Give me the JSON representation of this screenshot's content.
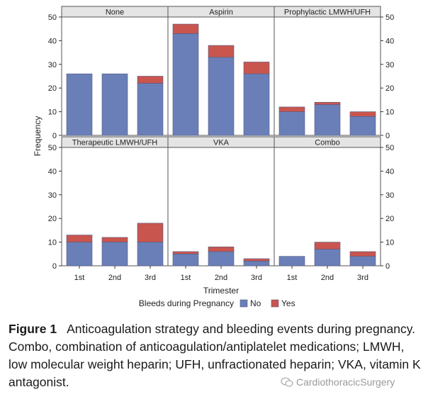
{
  "chart_data": {
    "type": "bar",
    "stacked": true,
    "layout": "paneled 2x3",
    "categories": [
      "1st",
      "2nd",
      "3rd"
    ],
    "xlabel": "Trimester",
    "ylabel": "Frequency",
    "ylim": [
      0,
      50
    ],
    "yticks": [
      0,
      10,
      20,
      30,
      40,
      50
    ],
    "legend": {
      "title": "Bleeds during Pregnancy",
      "position": "bottom",
      "entries": [
        {
          "name": "No",
          "color": "#6a7fb8"
        },
        {
          "name": "Yes",
          "color": "#c9554f"
        }
      ]
    },
    "panels": [
      {
        "title": "None",
        "series": [
          {
            "name": "No",
            "values": [
              26,
              26,
              22
            ]
          },
          {
            "name": "Yes",
            "values": [
              0,
              0,
              3
            ]
          }
        ]
      },
      {
        "title": "Aspirin",
        "series": [
          {
            "name": "No",
            "values": [
              43,
              33,
              26
            ]
          },
          {
            "name": "Yes",
            "values": [
              4,
              5,
              5
            ]
          }
        ]
      },
      {
        "title": "Prophylactic LMWH/UFH",
        "series": [
          {
            "name": "No",
            "values": [
              10,
              13,
              8
            ]
          },
          {
            "name": "Yes",
            "values": [
              2,
              1,
              2
            ]
          }
        ]
      },
      {
        "title": "Therapeutic LMWH/UFH",
        "series": [
          {
            "name": "No",
            "values": [
              10,
              10,
              10
            ]
          },
          {
            "name": "Yes",
            "values": [
              3,
              2,
              8
            ]
          }
        ]
      },
      {
        "title": "VKA",
        "series": [
          {
            "name": "No",
            "values": [
              5,
              6,
              2
            ]
          },
          {
            "name": "Yes",
            "values": [
              1,
              2,
              1
            ]
          }
        ]
      },
      {
        "title": "Combo",
        "series": [
          {
            "name": "No",
            "values": [
              4,
              7,
              4
            ]
          },
          {
            "name": "Yes",
            "values": [
              0,
              3,
              2
            ]
          }
        ]
      }
    ]
  },
  "caption": {
    "label": "Figure 1",
    "text": "Anticoagulation strategy and bleeding events during pregnancy. Combo, combination of anticoagulation/antiplatelet medications; LMWH, low molecular weight heparin; UFH, unfractionated heparin; VKA, vitamin K antagonist."
  },
  "watermark": {
    "text": "CardiothoracicSurgery",
    "icon": "wechat-icon"
  }
}
